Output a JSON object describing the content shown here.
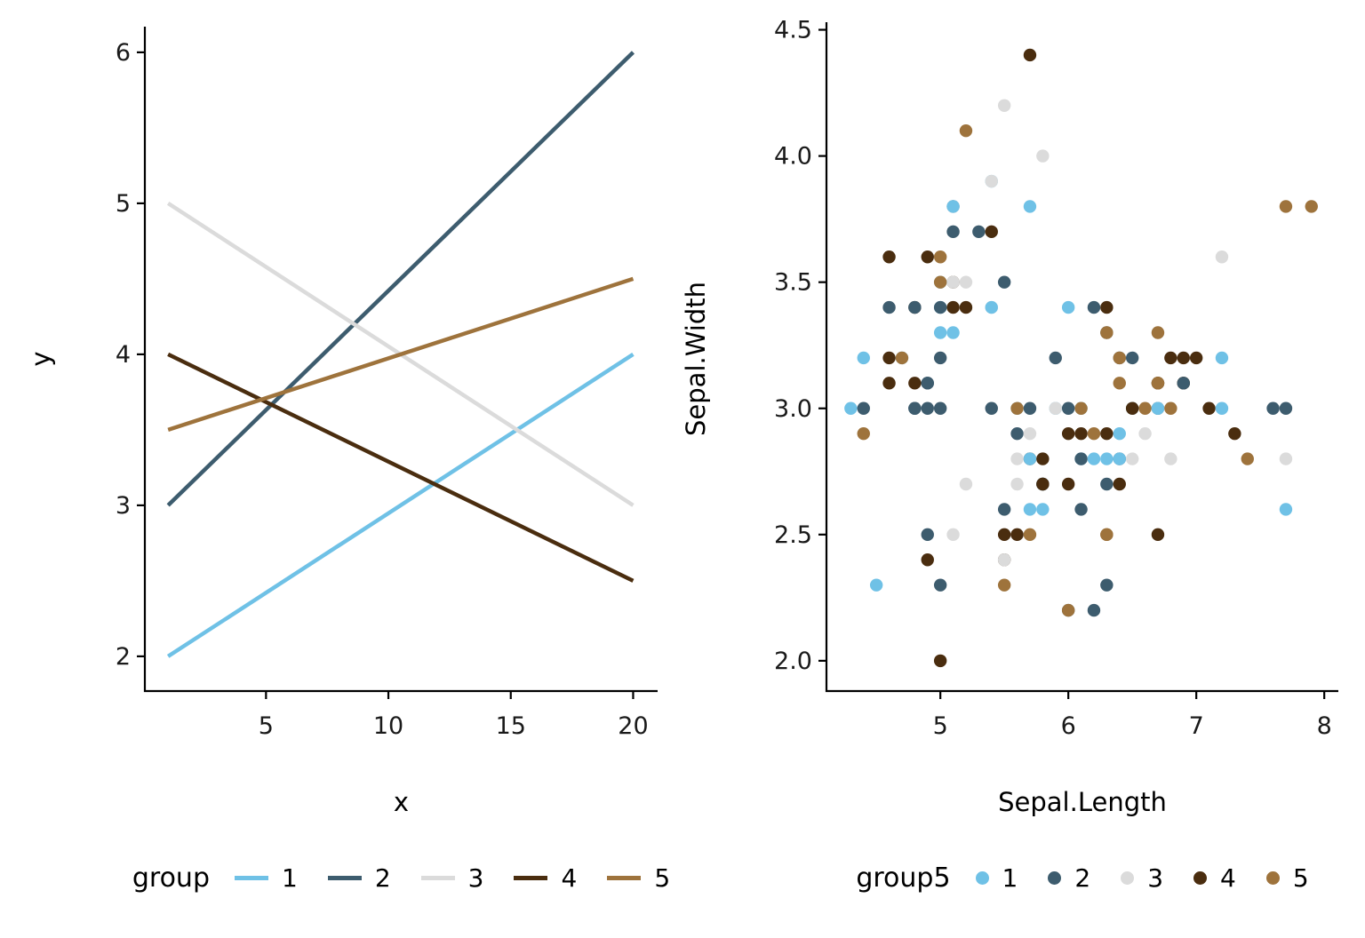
{
  "style": {
    "background": "#FFFFFF",
    "axis_color": "#000000",
    "tick_label_color": "#1A1A1A"
  },
  "palette": {
    "1": "#6FC1E6",
    "2": "#3D5C6E",
    "3": "#DBDBDB",
    "4": "#4A2D0F",
    "5": "#9E733C"
  },
  "chart_data": [
    {
      "type": "line",
      "title": "",
      "xlabel": "x",
      "ylabel": "y",
      "grid": false,
      "legend_position": "bottom",
      "xlim": [
        0.05,
        21.0
      ],
      "ylim": [
        1.77,
        6.17
      ],
      "x_ticks": [
        {
          "v": 5,
          "label": "5"
        },
        {
          "v": 10,
          "label": "10"
        },
        {
          "v": 15,
          "label": "15"
        },
        {
          "v": 20,
          "label": "20"
        }
      ],
      "y_ticks": [
        {
          "v": 2,
          "label": "2"
        },
        {
          "v": 3,
          "label": "3"
        },
        {
          "v": 4,
          "label": "4"
        },
        {
          "v": 5,
          "label": "5"
        },
        {
          "v": 6,
          "label": "6"
        }
      ],
      "series": [
        {
          "name": "1",
          "color_key": "1",
          "points": [
            [
              1,
              2.0
            ],
            [
              20,
              4.0
            ]
          ]
        },
        {
          "name": "2",
          "color_key": "2",
          "points": [
            [
              1,
              3.0
            ],
            [
              20,
              6.0
            ]
          ]
        },
        {
          "name": "3",
          "color_key": "3",
          "points": [
            [
              1,
              5.0
            ],
            [
              20,
              3.0
            ]
          ]
        },
        {
          "name": "4",
          "color_key": "4",
          "points": [
            [
              1,
              4.0
            ],
            [
              20,
              2.5
            ]
          ]
        },
        {
          "name": "5",
          "color_key": "5",
          "points": [
            [
              1,
              3.5
            ],
            [
              20,
              4.5
            ]
          ]
        }
      ],
      "legend": {
        "title": "group",
        "swatch": "line",
        "entries": [
          {
            "label": "1",
            "color_key": "1"
          },
          {
            "label": "2",
            "color_key": "2"
          },
          {
            "label": "3",
            "color_key": "3"
          },
          {
            "label": "4",
            "color_key": "4"
          },
          {
            "label": "5",
            "color_key": "5"
          }
        ]
      }
    },
    {
      "type": "scatter",
      "title": "",
      "xlabel": "Sepal.Length",
      "ylabel": "Sepal.Width",
      "grid": false,
      "legend_position": "bottom",
      "xlim": [
        4.11,
        8.11
      ],
      "ylim": [
        1.88,
        4.53
      ],
      "x_ticks": [
        {
          "v": 5,
          "label": "5"
        },
        {
          "v": 6,
          "label": "6"
        },
        {
          "v": 7,
          "label": "7"
        },
        {
          "v": 8,
          "label": "8"
        }
      ],
      "y_ticks": [
        {
          "v": 2.0,
          "label": "2.0"
        },
        {
          "v": 2.5,
          "label": "2.5"
        },
        {
          "v": 3.0,
          "label": "3.0"
        },
        {
          "v": 3.5,
          "label": "3.5"
        },
        {
          "v": 4.0,
          "label": "4.0"
        },
        {
          "v": 4.5,
          "label": "4.5"
        }
      ],
      "points": [
        [
          5.1,
          3.5,
          4
        ],
        [
          4.9,
          3.0,
          2
        ],
        [
          4.7,
          3.2,
          1
        ],
        [
          4.6,
          3.1,
          4
        ],
        [
          5.0,
          3.6,
          5
        ],
        [
          5.4,
          3.9,
          1
        ],
        [
          4.6,
          3.4,
          2
        ],
        [
          5.0,
          3.4,
          1
        ],
        [
          4.4,
          2.9,
          5
        ],
        [
          4.9,
          3.1,
          2
        ],
        [
          5.4,
          3.7,
          4
        ],
        [
          4.8,
          3.4,
          4
        ],
        [
          4.8,
          3.0,
          2
        ],
        [
          4.3,
          3.0,
          1
        ],
        [
          5.8,
          4.0,
          3
        ],
        [
          5.7,
          4.4,
          4
        ],
        [
          5.4,
          3.9,
          3
        ],
        [
          5.1,
          3.5,
          3
        ],
        [
          5.7,
          3.8,
          1
        ],
        [
          5.1,
          3.8,
          2
        ],
        [
          5.4,
          3.4,
          3
        ],
        [
          5.1,
          3.7,
          2
        ],
        [
          4.6,
          3.6,
          4
        ],
        [
          5.1,
          3.3,
          1
        ],
        [
          4.8,
          3.4,
          2
        ],
        [
          5.0,
          3.0,
          2
        ],
        [
          5.0,
          3.4,
          2
        ],
        [
          5.2,
          3.5,
          3
        ],
        [
          5.2,
          3.4,
          4
        ],
        [
          4.7,
          3.2,
          5
        ],
        [
          4.8,
          3.1,
          4
        ],
        [
          5.4,
          3.4,
          1
        ],
        [
          5.2,
          4.1,
          5
        ],
        [
          5.5,
          4.2,
          3
        ],
        [
          4.9,
          3.1,
          2
        ],
        [
          5.0,
          3.2,
          2
        ],
        [
          5.5,
          3.5,
          2
        ],
        [
          4.9,
          3.6,
          4
        ],
        [
          4.4,
          3.0,
          2
        ],
        [
          5.1,
          3.4,
          4
        ],
        [
          5.0,
          3.5,
          1
        ],
        [
          4.5,
          2.3,
          1
        ],
        [
          4.4,
          3.2,
          1
        ],
        [
          5.0,
          3.5,
          5
        ],
        [
          5.1,
          3.8,
          3
        ],
        [
          4.8,
          3.0,
          2
        ],
        [
          5.1,
          3.8,
          1
        ],
        [
          4.6,
          3.2,
          4
        ],
        [
          5.3,
          3.7,
          2
        ],
        [
          5.0,
          3.3,
          1
        ],
        [
          7.0,
          3.2,
          4
        ],
        [
          6.4,
          3.2,
          2
        ],
        [
          6.9,
          3.1,
          5
        ],
        [
          5.5,
          2.3,
          5
        ],
        [
          6.5,
          2.8,
          3
        ],
        [
          5.7,
          2.8,
          4
        ],
        [
          6.3,
          3.3,
          2
        ],
        [
          4.9,
          2.4,
          4
        ],
        [
          6.6,
          2.9,
          3
        ],
        [
          5.2,
          2.7,
          3
        ],
        [
          5.0,
          2.0,
          4
        ],
        [
          5.9,
          3.0,
          1
        ],
        [
          6.0,
          2.2,
          2
        ],
        [
          6.1,
          2.9,
          4
        ],
        [
          5.6,
          2.9,
          2
        ],
        [
          6.7,
          3.1,
          5
        ],
        [
          5.6,
          3.0,
          1
        ],
        [
          5.8,
          2.7,
          4
        ],
        [
          6.2,
          2.2,
          2
        ],
        [
          5.6,
          2.5,
          4
        ],
        [
          5.9,
          3.2,
          2
        ],
        [
          6.1,
          2.8,
          1
        ],
        [
          6.3,
          2.5,
          5
        ],
        [
          6.1,
          2.8,
          2
        ],
        [
          6.4,
          2.9,
          1
        ],
        [
          6.6,
          3.0,
          5
        ],
        [
          6.8,
          2.8,
          3
        ],
        [
          6.7,
          3.0,
          2
        ],
        [
          6.0,
          2.9,
          4
        ],
        [
          5.7,
          2.6,
          1
        ],
        [
          5.5,
          2.4,
          4
        ],
        [
          5.5,
          2.4,
          3
        ],
        [
          5.8,
          2.7,
          1
        ],
        [
          6.0,
          2.7,
          4
        ],
        [
          5.4,
          3.0,
          2
        ],
        [
          6.0,
          3.4,
          1
        ],
        [
          6.7,
          3.1,
          4
        ],
        [
          6.3,
          2.3,
          2
        ],
        [
          5.6,
          3.0,
          5
        ],
        [
          5.5,
          2.5,
          4
        ],
        [
          5.5,
          2.6,
          2
        ],
        [
          6.1,
          3.0,
          1
        ],
        [
          5.8,
          2.6,
          1
        ],
        [
          5.0,
          2.3,
          2
        ],
        [
          5.6,
          2.7,
          3
        ],
        [
          5.7,
          3.0,
          2
        ],
        [
          5.7,
          2.9,
          3
        ],
        [
          6.2,
          2.9,
          5
        ],
        [
          5.1,
          2.5,
          3
        ],
        [
          5.7,
          2.8,
          1
        ],
        [
          6.3,
          3.3,
          5
        ],
        [
          5.8,
          2.7,
          2
        ],
        [
          7.1,
          3.0,
          4
        ],
        [
          6.3,
          2.9,
          4
        ],
        [
          6.5,
          3.0,
          5
        ],
        [
          7.6,
          3.0,
          2
        ],
        [
          4.9,
          2.5,
          2
        ],
        [
          7.3,
          2.9,
          4
        ],
        [
          6.7,
          2.5,
          4
        ],
        [
          7.2,
          3.6,
          3
        ],
        [
          6.5,
          3.2,
          2
        ],
        [
          6.4,
          2.7,
          4
        ],
        [
          6.8,
          3.0,
          5
        ],
        [
          5.7,
          2.5,
          5
        ],
        [
          5.8,
          2.8,
          4
        ],
        [
          6.4,
          3.2,
          5
        ],
        [
          6.5,
          3.0,
          1
        ],
        [
          7.7,
          3.8,
          5
        ],
        [
          7.7,
          2.6,
          1
        ],
        [
          6.0,
          2.2,
          5
        ],
        [
          6.9,
          3.2,
          4
        ],
        [
          5.6,
          2.8,
          3
        ],
        [
          7.7,
          2.8,
          3
        ],
        [
          6.3,
          2.7,
          2
        ],
        [
          6.7,
          3.3,
          3
        ],
        [
          7.2,
          3.2,
          1
        ],
        [
          6.2,
          2.8,
          1
        ],
        [
          6.1,
          3.0,
          5
        ],
        [
          6.4,
          2.8,
          2
        ],
        [
          7.2,
          3.0,
          1
        ],
        [
          7.4,
          2.8,
          5
        ],
        [
          7.9,
          3.8,
          5
        ],
        [
          6.4,
          2.8,
          1
        ],
        [
          6.3,
          2.8,
          1
        ],
        [
          6.1,
          2.6,
          2
        ],
        [
          7.7,
          3.0,
          2
        ],
        [
          6.3,
          3.4,
          4
        ],
        [
          6.4,
          3.1,
          5
        ],
        [
          6.0,
          3.0,
          2
        ],
        [
          6.9,
          3.1,
          4
        ],
        [
          6.7,
          3.1,
          5
        ],
        [
          6.9,
          3.1,
          2
        ],
        [
          5.8,
          2.7,
          4
        ],
        [
          6.8,
          3.2,
          4
        ],
        [
          6.7,
          3.3,
          5
        ],
        [
          6.7,
          3.0,
          1
        ],
        [
          6.3,
          2.5,
          5
        ],
        [
          6.5,
          3.0,
          4
        ],
        [
          6.2,
          3.4,
          2
        ],
        [
          5.9,
          3.0,
          3
        ]
      ],
      "legend": {
        "title": "group5",
        "swatch": "point",
        "entries": [
          {
            "label": "1",
            "color_key": "1"
          },
          {
            "label": "2",
            "color_key": "2"
          },
          {
            "label": "3",
            "color_key": "3"
          },
          {
            "label": "4",
            "color_key": "4"
          },
          {
            "label": "5",
            "color_key": "5"
          }
        ]
      }
    }
  ]
}
